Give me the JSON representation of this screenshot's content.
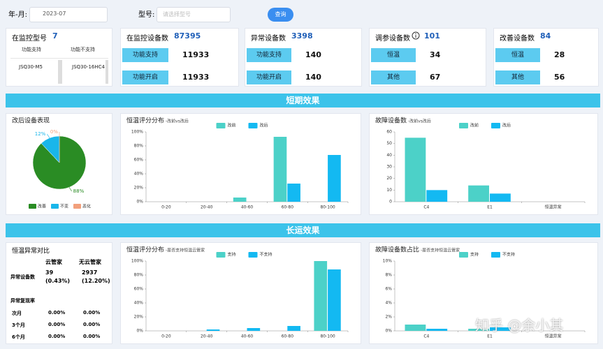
{
  "header": {
    "month_label": "年-月:",
    "month_value": "2023-07",
    "model_label": "型号:",
    "model_placeholder": "请选择型号",
    "query_button": "查询"
  },
  "cards": [
    {
      "title": "在监控型号",
      "value": 7,
      "columns": [
        "功能支持",
        "功能不支持"
      ],
      "rows": [
        [
          "JSQ30-M5",
          "JSQ30-16HC4"
        ]
      ]
    },
    {
      "title": "在监控设备数",
      "value": 87395,
      "items": [
        {
          "label": "功能支持",
          "value": 11933
        },
        {
          "label": "功能开启",
          "value": 11933
        }
      ]
    },
    {
      "title": "异常设备数",
      "value": 3398,
      "items": [
        {
          "label": "功能支持",
          "value": 140
        },
        {
          "label": "功能开启",
          "value": 140
        }
      ]
    },
    {
      "title": "调参设备数",
      "value": 101,
      "items": [
        {
          "label": "恒温",
          "value": 34
        },
        {
          "label": "其他",
          "value": 67
        }
      ]
    },
    {
      "title": "改善设备数",
      "value": 84,
      "items": [
        {
          "label": "恒温",
          "value": 28
        },
        {
          "label": "其他",
          "value": 56
        }
      ]
    }
  ],
  "sections": [
    "短期效果",
    "长运效果"
  ],
  "chart_data": [
    {
      "type": "pie",
      "title": "改后设备表现",
      "categories": [
        "改善",
        "不变",
        "恶化"
      ],
      "values": [
        88,
        12,
        0
      ],
      "value_labels": [
        "88%",
        "12%",
        "0%"
      ],
      "colors": [
        "#2a8c24",
        "#19b6ea",
        "#f2a07c"
      ]
    },
    {
      "type": "bar",
      "title": "恒温评分分布",
      "subtitle": "-改前vs改后",
      "categories": [
        "0-20",
        "20-40",
        "40-60",
        "60-80",
        "80-100"
      ],
      "series": [
        {
          "name": "改前",
          "color": "#4cd1c8",
          "values": [
            0,
            0,
            6,
            93,
            0
          ]
        },
        {
          "name": "改后",
          "color": "#13b9f2",
          "values": [
            0,
            0,
            0,
            26,
            67
          ]
        }
      ],
      "ylim": [
        0,
        100
      ],
      "yticks": [
        {
          "value": 0,
          "label": "0%"
        },
        {
          "value": 20,
          "label": "20%"
        },
        {
          "value": 40,
          "label": "40%"
        },
        {
          "value": 60,
          "label": "60%"
        },
        {
          "value": 80,
          "label": "80%"
        },
        {
          "value": 100,
          "label": "100%"
        }
      ]
    },
    {
      "type": "bar",
      "title": "故障设备数",
      "subtitle": "-改前vs改后",
      "categories": [
        "C4",
        "E1",
        "恒温异常"
      ],
      "series": [
        {
          "name": "改前",
          "color": "#4cd1c8",
          "values": [
            55,
            14,
            0
          ]
        },
        {
          "name": "改后",
          "color": "#13b9f2",
          "values": [
            10,
            7,
            0
          ]
        }
      ],
      "ylim": [
        0,
        60
      ],
      "yticks": [
        0,
        10,
        20,
        30,
        40,
        50,
        60
      ]
    },
    {
      "type": "bar",
      "title": "恒温评分分布",
      "subtitle": "-是否支持恒温云管家",
      "categories": [
        "0-20",
        "20-40",
        "40-60",
        "60-80",
        "80-100"
      ],
      "series": [
        {
          "name": "支持",
          "color": "#4cd1c8",
          "values": [
            0,
            0,
            0,
            0,
            100
          ]
        },
        {
          "name": "不支持",
          "color": "#13b9f2",
          "values": [
            0,
            2,
            4,
            7,
            88
          ]
        }
      ],
      "ylim": [
        0,
        100
      ],
      "yticks": [
        {
          "value": 0,
          "label": "0%"
        },
        {
          "value": 20,
          "label": "20%"
        },
        {
          "value": 40,
          "label": "40%"
        },
        {
          "value": 60,
          "label": "60%"
        },
        {
          "value": 80,
          "label": "80%"
        },
        {
          "value": 100,
          "label": "100%"
        }
      ]
    },
    {
      "type": "bar",
      "title": "故障设备数占比",
      "subtitle": "-是否支持恒温云管家",
      "categories": [
        "C4",
        "E1",
        "恒温异常"
      ],
      "series": [
        {
          "name": "支持",
          "color": "#4cd1c8",
          "values": [
            0.9,
            0.3,
            0
          ]
        },
        {
          "name": "不支持",
          "color": "#13b9f2",
          "values": [
            0.3,
            0.5,
            0
          ]
        }
      ],
      "ylim": [
        0,
        10
      ],
      "yticks": [
        {
          "value": 0,
          "label": "0%"
        },
        {
          "value": 2,
          "label": "2%"
        },
        {
          "value": 4,
          "label": "4%"
        },
        {
          "value": 6,
          "label": "6%"
        },
        {
          "value": 8,
          "label": "8%"
        },
        {
          "value": 10,
          "label": "10%"
        }
      ]
    }
  ],
  "table": {
    "title": "恒温异常对比",
    "columns": [
      "云管家",
      "无云管家"
    ],
    "count_row": {
      "label": "异常设备数",
      "cells": [
        [
          "39",
          "(0.43%)"
        ],
        [
          "2937",
          "(12.20%)"
        ]
      ]
    },
    "rate_title": "异常复现率",
    "rate_rows": [
      {
        "label": "次月",
        "cells": [
          "0.00%",
          "0.00%"
        ]
      },
      {
        "label": "3个月",
        "cells": [
          "0.00%",
          "0.00%"
        ]
      },
      {
        "label": "6个月",
        "cells": [
          "0.00%",
          "0.00%"
        ]
      }
    ]
  },
  "watermark": "知乎 @余小其"
}
